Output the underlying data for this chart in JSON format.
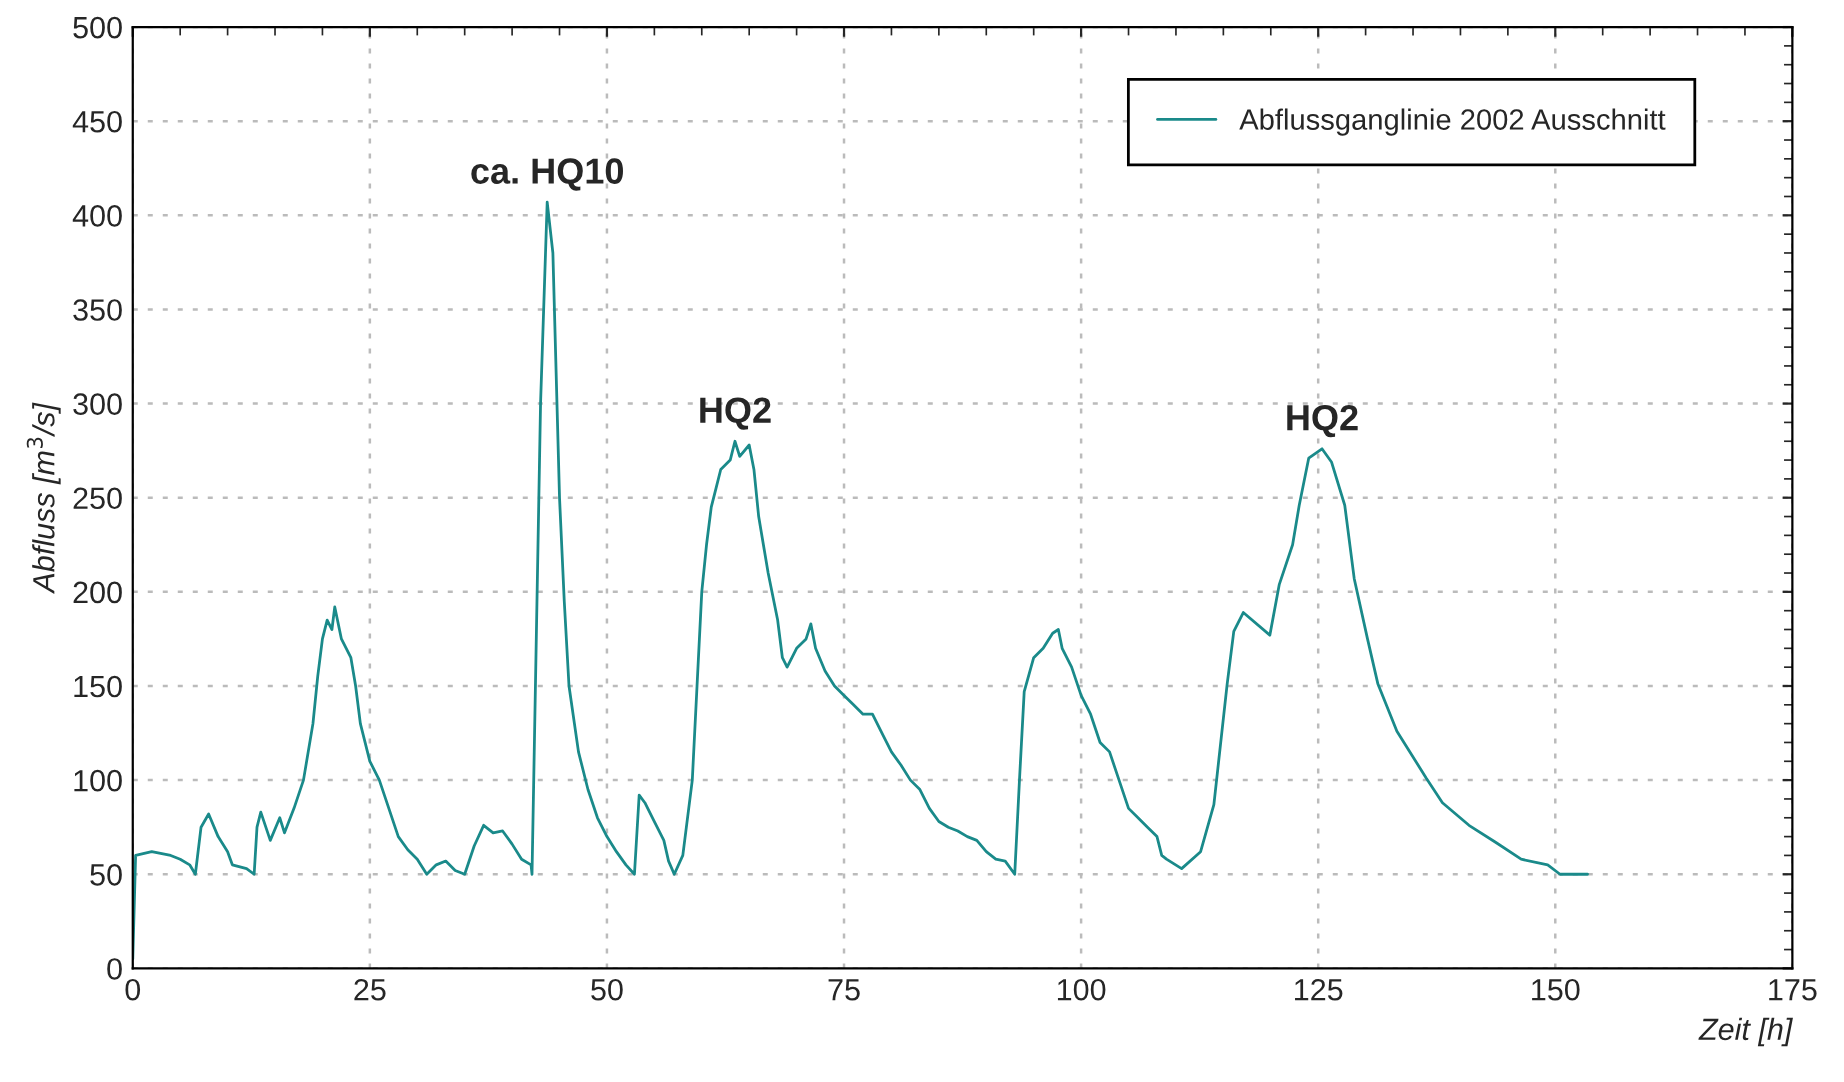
{
  "chart_data": {
    "type": "line",
    "xlabel": "Zeit [h]",
    "ylabel": "Abfluss [m$^{3}$/s]",
    "xlim": [
      0,
      175
    ],
    "xticks": [
      0,
      25,
      50,
      75,
      100,
      125,
      150,
      175
    ],
    "ylim": [
      0,
      500
    ],
    "yticks": [
      0,
      50,
      100,
      150,
      200,
      250,
      300,
      350,
      400,
      450,
      500
    ],
    "grid": true,
    "legend": "top right",
    "annotations": [
      {
        "text": "ca. HQ10",
        "x": 43.7,
        "y": 407
      },
      {
        "text": "HQ2",
        "x": 63.5,
        "y": 280
      },
      {
        "text": "HQ2",
        "x": 125.4,
        "y": 276
      }
    ],
    "series": [
      {
        "name": "Abflussganglinie 2002 Ausschnitt",
        "color": "#1a8a8a",
        "x": [
          0,
          0.3,
          2,
          4,
          5,
          6,
          6.6,
          7.2,
          8,
          9,
          10,
          10.5,
          12,
          12.8,
          13.1,
          13.5,
          14.5,
          15.5,
          16,
          17,
          18,
          19,
          19.5,
          20,
          20.5,
          21,
          21.3,
          22,
          23,
          23.5,
          24,
          25,
          26,
          27,
          28,
          29,
          30,
          31,
          32,
          33,
          34,
          35,
          36,
          37,
          38,
          39,
          40,
          41,
          42,
          42.1,
          43,
          43.7,
          44.3,
          45,
          45.5,
          46,
          47,
          48,
          49,
          50,
          51,
          52,
          52.9,
          53.4,
          54,
          55,
          56,
          56.5,
          57.1,
          58,
          59,
          59.5,
          60,
          60.5,
          61,
          61.5,
          62,
          63,
          63.5,
          64,
          65,
          65.5,
          66,
          67,
          68,
          68.5,
          69,
          70,
          71,
          71.5,
          72,
          73,
          74,
          75,
          76,
          77,
          78,
          79,
          80,
          81,
          82,
          83,
          84,
          85,
          86,
          87,
          88,
          89,
          90,
          91,
          92,
          93,
          93.5,
          94,
          95,
          96,
          97,
          97.6,
          98,
          99,
          100,
          101,
          102,
          103,
          104,
          105,
          106,
          107,
          108,
          108.5,
          109,
          110.6,
          112.6,
          114,
          115.4,
          116.1,
          117.1,
          119.9,
          120.9,
          122.3,
          123,
          124,
          125.4,
          126.4,
          127.8,
          128.8,
          130.2,
          131.3,
          133.3,
          136.4,
          138.1,
          140.9,
          143.7,
          146.4,
          149.2,
          150.5,
          153.4
        ],
        "values": [
          5,
          60,
          62,
          60,
          58,
          55,
          50,
          75,
          82,
          70,
          62,
          55,
          53,
          50,
          75,
          83,
          68,
          80,
          72,
          85,
          100,
          130,
          155,
          175,
          185,
          180,
          192,
          175,
          165,
          150,
          130,
          110,
          100,
          85,
          70,
          63,
          58,
          50,
          55,
          57,
          52,
          50,
          65,
          76,
          72,
          73,
          66,
          58,
          55,
          50,
          300,
          407,
          380,
          250,
          195,
          150,
          115,
          95,
          80,
          70,
          62,
          55,
          50,
          92,
          88,
          78,
          68,
          57,
          50,
          60,
          100,
          150,
          200,
          225,
          245,
          255,
          265,
          270,
          280,
          272,
          278,
          265,
          240,
          210,
          185,
          165,
          160,
          170,
          175,
          183,
          170,
          158,
          150,
          145,
          140,
          135,
          135,
          125,
          115,
          108,
          100,
          95,
          85,
          78,
          75,
          73,
          70,
          68,
          62,
          58,
          57,
          50,
          100,
          147,
          165,
          170,
          178,
          180,
          170,
          160,
          145,
          135,
          120,
          115,
          100,
          85,
          80,
          75,
          70,
          60,
          58,
          53,
          62,
          87,
          151,
          179,
          189,
          177,
          204,
          225,
          246,
          271,
          276,
          269,
          246,
          207,
          175,
          151,
          126,
          101,
          88,
          76,
          67,
          58,
          55,
          50,
          50
        ]
      }
    ]
  }
}
